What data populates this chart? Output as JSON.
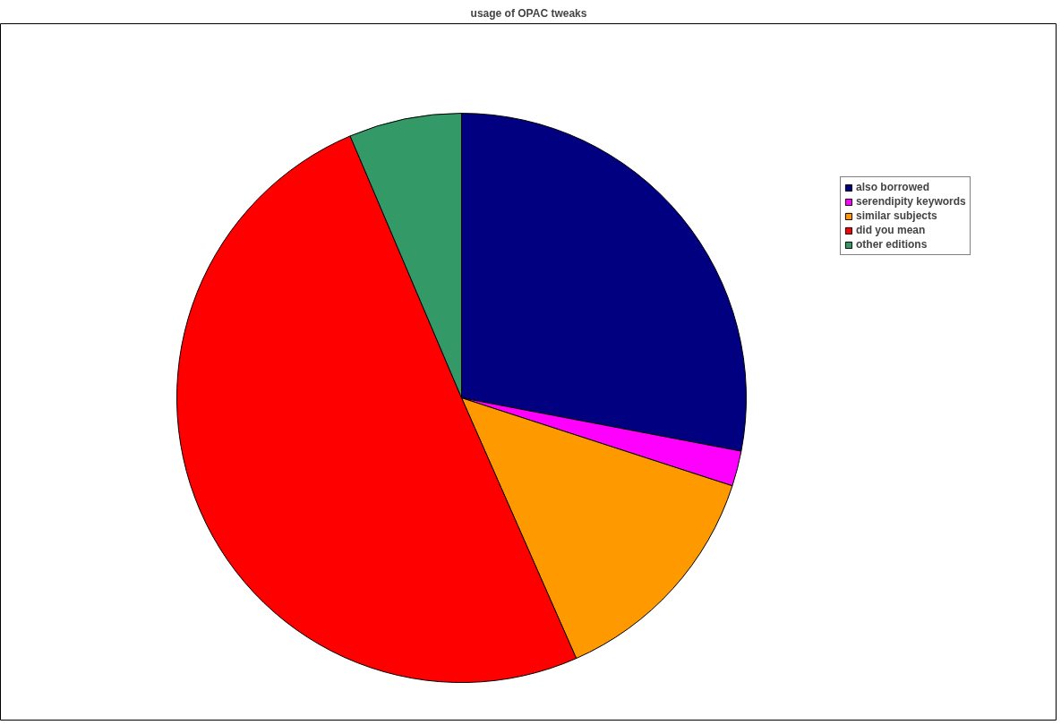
{
  "chart_data": {
    "type": "pie",
    "title": "usage of OPAC tweaks",
    "categories": [
      "also borrowed",
      "serendipity keywords",
      "similar subjects",
      "did you mean",
      "other editions"
    ],
    "values": [
      28.0,
      2.0,
      13.4,
      50.2,
      6.4
    ],
    "colors": [
      "#000080",
      "#ff00ff",
      "#ff9900",
      "#ff0000",
      "#339966"
    ],
    "legend": "right"
  }
}
